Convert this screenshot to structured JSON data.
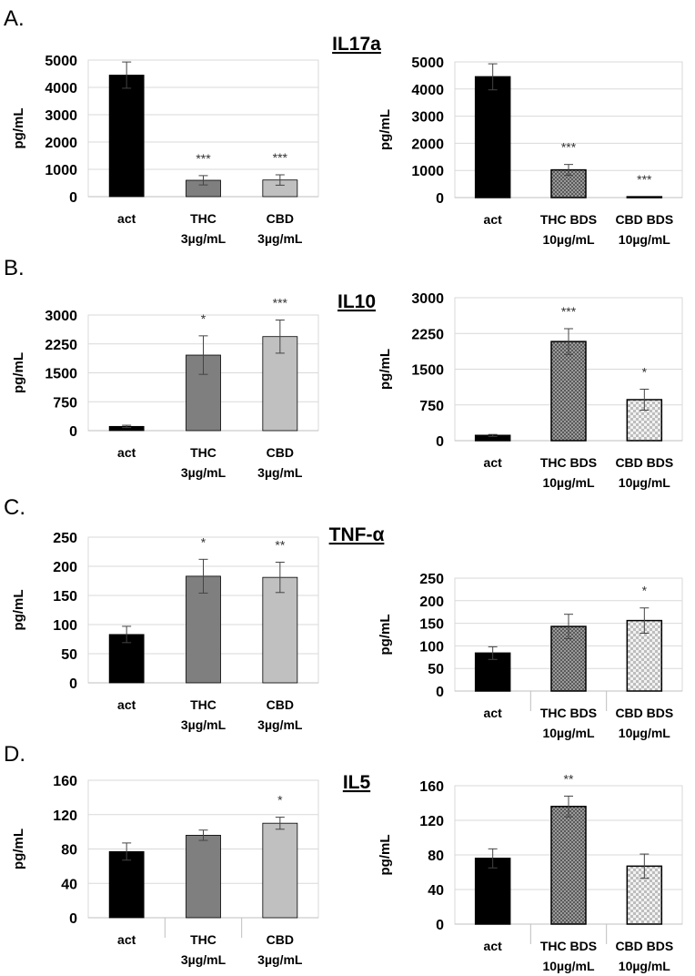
{
  "panels": [
    {
      "label": "A.",
      "title": "IL17a"
    },
    {
      "label": "B.",
      "title": "IL10"
    },
    {
      "label": "C.",
      "title": "TNF-α"
    },
    {
      "label": "D.",
      "title": "IL5"
    }
  ],
  "colors": {
    "act": "#000000",
    "THC": "#7f7f7f",
    "CBD": "#c0c0c0",
    "THC BDS": "crosshatch-dark-gray",
    "CBD BDS": "checker-light-gray",
    "grid": "#d9d9d9"
  },
  "chart_data": [
    {
      "type": "bar",
      "panel": "A",
      "ylabel": "pg/mL",
      "ylim": [
        0,
        5000
      ],
      "yticks": [
        0,
        1000,
        2000,
        3000,
        4000,
        5000
      ],
      "grid": true,
      "categories": [
        [
          "act",
          ""
        ],
        [
          "THC",
          "3µg/mL"
        ],
        [
          "CBD",
          "3µg/mL"
        ]
      ],
      "values": [
        4450,
        600,
        610
      ],
      "errors": [
        480,
        170,
        190
      ],
      "annotations": [
        "",
        "***",
        "***"
      ]
    },
    {
      "type": "bar",
      "panel": "A",
      "ylabel": "pg/mL",
      "ylim": [
        0,
        5000
      ],
      "yticks": [
        0,
        1000,
        2000,
        3000,
        4000,
        5000
      ],
      "grid": true,
      "categories": [
        [
          "act",
          ""
        ],
        [
          "THC BDS",
          "10µg/mL"
        ],
        [
          "CBD BDS",
          "10µg/mL"
        ]
      ],
      "values": [
        4450,
        1020,
        30
      ],
      "errors": [
        480,
        200,
        0
      ],
      "annotations": [
        "",
        "***",
        "***"
      ]
    },
    {
      "type": "bar",
      "panel": "B",
      "ylabel": "pg/mL",
      "ylim": [
        0,
        3000
      ],
      "yticks": [
        0,
        750,
        1500,
        2250,
        3000
      ],
      "grid": true,
      "categories": [
        [
          "act",
          ""
        ],
        [
          "THC",
          "3µg/mL"
        ],
        [
          "CBD",
          "3µg/mL"
        ]
      ],
      "values": [
        110,
        1960,
        2440
      ],
      "errors": [
        30,
        500,
        430
      ],
      "annotations": [
        "",
        "*",
        "***"
      ]
    },
    {
      "type": "bar",
      "panel": "B",
      "ylabel": "pg/mL",
      "ylim": [
        0,
        3000
      ],
      "yticks": [
        0,
        750,
        1500,
        2250,
        3000
      ],
      "grid": true,
      "categories": [
        [
          "act",
          ""
        ],
        [
          "THC BDS",
          "10µg/mL"
        ],
        [
          "CBD BDS",
          "10µg/mL"
        ]
      ],
      "values": [
        110,
        2080,
        860
      ],
      "errors": [
        20,
        270,
        220
      ],
      "annotations": [
        "",
        "***",
        "*"
      ]
    },
    {
      "type": "bar",
      "panel": "C",
      "ylabel": "pg/mL",
      "ylim": [
        0,
        250
      ],
      "yticks": [
        0,
        50,
        100,
        150,
        200,
        250
      ],
      "grid": true,
      "categories": [
        [
          "act",
          ""
        ],
        [
          "THC",
          "3µg/mL"
        ],
        [
          "CBD",
          "3µg/mL"
        ]
      ],
      "values": [
        83,
        183,
        181
      ],
      "errors": [
        14,
        29,
        26
      ],
      "annotations": [
        "",
        "*",
        "**"
      ]
    },
    {
      "type": "bar",
      "panel": "C",
      "ylabel": "pg/mL",
      "ylim": [
        0,
        250
      ],
      "yticks": [
        0,
        50,
        100,
        150,
        200,
        250
      ],
      "grid": true,
      "categories": [
        [
          "act",
          ""
        ],
        [
          "THC BDS",
          "10µg/mL"
        ],
        [
          "CBD BDS",
          "10µg/mL"
        ]
      ],
      "values": [
        84,
        143,
        156
      ],
      "errors": [
        14,
        27,
        28
      ],
      "annotations": [
        "",
        "",
        "*"
      ]
    },
    {
      "type": "bar",
      "panel": "D",
      "ylabel": "pg/mL",
      "ylim": [
        0,
        160
      ],
      "yticks": [
        0,
        40,
        80,
        120,
        160
      ],
      "grid": true,
      "categories": [
        [
          "act",
          ""
        ],
        [
          "THC",
          "3µg/mL"
        ],
        [
          "CBD",
          "3µg/mL"
        ]
      ],
      "values": [
        77,
        96,
        110
      ],
      "errors": [
        10,
        6,
        7
      ],
      "annotations": [
        "",
        "",
        "*"
      ]
    },
    {
      "type": "bar",
      "panel": "D",
      "ylabel": "pg/mL",
      "ylim": [
        0,
        160
      ],
      "yticks": [
        0,
        40,
        80,
        120,
        160
      ],
      "grid": true,
      "categories": [
        [
          "act",
          ""
        ],
        [
          "THC BDS",
          "10µg/mL"
        ],
        [
          "CBD BDS",
          "10µg/mL"
        ]
      ],
      "values": [
        76,
        136,
        67
      ],
      "errors": [
        11,
        12,
        14
      ],
      "annotations": [
        "",
        "**",
        ""
      ]
    }
  ]
}
